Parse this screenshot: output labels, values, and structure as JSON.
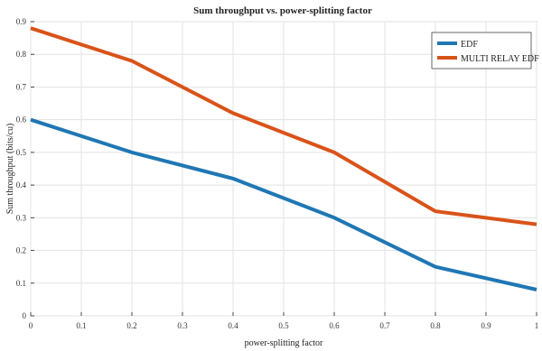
{
  "chart_data": {
    "type": "line",
    "title": "Sum throughput vs. power-splitting factor",
    "xlabel": "power-splitting factor",
    "ylabel": "Sum throughput (bits/cu)",
    "x": [
      0,
      0.2,
      0.4,
      0.6,
      0.8,
      1
    ],
    "xlim": [
      0,
      1
    ],
    "ylim": [
      0,
      0.9
    ],
    "xticks": [
      "0",
      "0.1",
      "0.2",
      "0.3",
      "0.4",
      "0.5",
      "0.6",
      "0.7",
      "0.8",
      "0.9",
      "1"
    ],
    "yticks": [
      "0",
      "0.1",
      "0.2",
      "0.3",
      "0.4",
      "0.5",
      "0.6",
      "0.7",
      "0.8",
      "0.9"
    ],
    "grid": true,
    "legend_position": "top-right",
    "series": [
      {
        "name": "EDF",
        "color": "#1f77b4",
        "values": [
          0.6,
          0.5,
          0.42,
          0.3,
          0.15,
          0.08
        ]
      },
      {
        "name": "MULTI RELAY EDF",
        "color": "#d95319",
        "values": [
          0.88,
          0.78,
          0.62,
          0.5,
          0.32,
          0.28
        ]
      }
    ]
  }
}
